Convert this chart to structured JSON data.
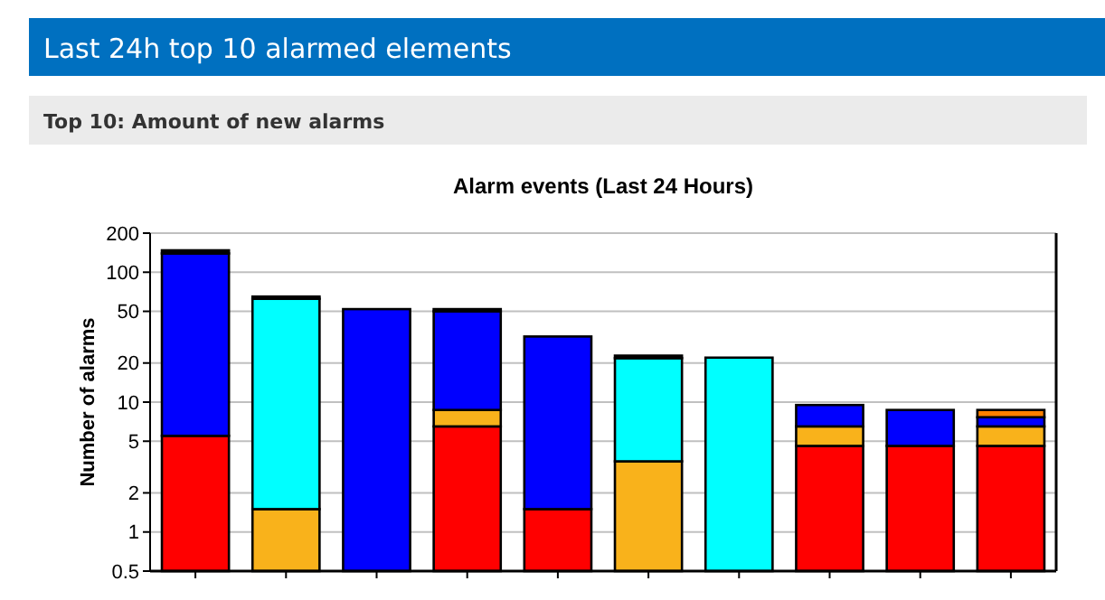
{
  "chart_data": {
    "type": "bar",
    "title": "Alarm events (Last 24 Hours)",
    "ylabel": "Number of alarms",
    "annotations": [
      "Last 24h top 10 alarmed elements",
      "Top 10: Amount of new alarms"
    ],
    "categories": [
      null,
      null,
      null,
      null,
      null,
      null,
      null,
      null,
      null,
      null
    ],
    "stacked": true,
    "log": "y",
    "grid": "y",
    "ylim": [
      0.5,
      200
    ],
    "yticks": [
      0.5,
      1,
      2,
      5,
      10,
      20,
      50,
      100,
      200
    ],
    "series": [
      {
        "color": "#ff0000",
        "values": [
          5.5,
          null,
          null,
          6.5,
          1.5,
          null,
          null,
          4.6,
          4.6,
          4.6
        ]
      },
      {
        "color": "#f9b21b",
        "values": [
          null,
          1.5,
          null,
          2.2,
          null,
          3.5,
          null,
          1.9,
          null,
          1.9
        ]
      },
      {
        "color": "#00ffff",
        "values": [
          null,
          61,
          null,
          null,
          null,
          18.3,
          22,
          null,
          null,
          null
        ]
      },
      {
        "color": "#0000ff",
        "values": [
          134,
          null,
          52,
          41.3,
          30.5,
          null,
          null,
          3,
          4.1,
          1.15
        ]
      },
      {
        "color": "#ff8000",
        "values": [
          null,
          null,
          null,
          null,
          null,
          null,
          null,
          null,
          null,
          1.05
        ]
      },
      {
        "color": "#000000",
        "values": [
          8,
          2.5,
          null,
          2,
          null,
          1,
          null,
          null,
          null,
          null
        ]
      }
    ]
  }
}
